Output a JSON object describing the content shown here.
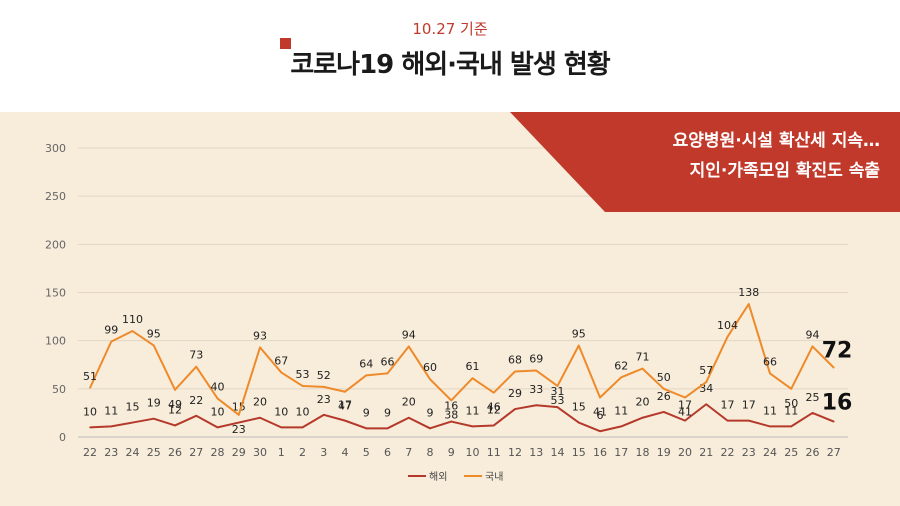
{
  "header": {
    "date": "10.27 기준",
    "title": "코로나19 해외·국내 발생 현황"
  },
  "banner": {
    "line1": "요양병원·시설 확산세 지속…",
    "line2": "지인·가족모임 확진도 속출"
  },
  "colors": {
    "overseas": "#b5392b",
    "domestic": "#ee8a2a",
    "banner": "#c0392b",
    "panel": "#f8eddb"
  },
  "chart_data": {
    "type": "line",
    "categories": [
      "22",
      "23",
      "24",
      "25",
      "26",
      "27",
      "28",
      "29",
      "30",
      "1",
      "2",
      "3",
      "4",
      "5",
      "6",
      "7",
      "8",
      "9",
      "10",
      "11",
      "12",
      "13",
      "14",
      "15",
      "16",
      "17",
      "18",
      "19",
      "20",
      "21",
      "22",
      "23",
      "24",
      "25",
      "26",
      "27"
    ],
    "ylim": [
      0,
      300
    ],
    "yticks": [
      0,
      50,
      100,
      150,
      200,
      250,
      300
    ],
    "grid": true,
    "legend_position": "bottom",
    "series": [
      {
        "name": "해외",
        "color": "#b5392b",
        "values": [
          10,
          11,
          15,
          19,
          12,
          22,
          10,
          15,
          20,
          10,
          10,
          23,
          17,
          9,
          9,
          20,
          9,
          16,
          11,
          12,
          29,
          33,
          31,
          15,
          6,
          11,
          20,
          26,
          17,
          34,
          17,
          17,
          11,
          11,
          25,
          16
        ],
        "last_label": "16"
      },
      {
        "name": "국내",
        "color": "#ee8a2a",
        "values": [
          51,
          99,
          110,
          95,
          49,
          73,
          40,
          23,
          93,
          67,
          53,
          52,
          47,
          64,
          66,
          94,
          60,
          38,
          61,
          46,
          68,
          69,
          53,
          95,
          41,
          62,
          71,
          50,
          41,
          57,
          104,
          138,
          66,
          50,
          94,
          72
        ],
        "last_label": "72"
      }
    ]
  }
}
